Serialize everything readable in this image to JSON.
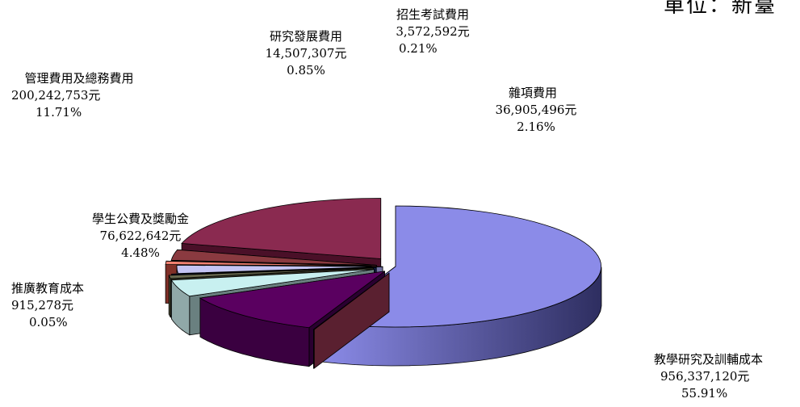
{
  "unit_title": "單位：新臺",
  "chart_data": {
    "type": "pie",
    "title": "",
    "slices": [
      {
        "name": "教學研究及訓輔成本",
        "amount": "956,337,120元",
        "percent": "55.91%",
        "value": 55.91,
        "color": "#8b8be8",
        "side": "#3a3a78",
        "side_light": "#6060b0"
      },
      {
        "name": "推廣教育成本",
        "amount": "915,278元",
        "percent": "0.05%",
        "value": 0.05,
        "color": "#c06070",
        "side": "#5a2030",
        "side_light": "#7a3040"
      },
      {
        "name": "管理費用及總務費用",
        "amount": "200,242,753元",
        "percent": "11.71%",
        "value": 11.71,
        "color": "#5a0060",
        "side": "#2a0030",
        "side_light": "#3a0040"
      },
      {
        "name": "學生公費及獎勵金",
        "amount": "76,622,642元",
        "percent": "4.48%",
        "value": 4.48,
        "color": "#c8f0f0",
        "side": "#6a8080",
        "side_light": "#90a8a8"
      },
      {
        "name": "研究發展費用",
        "amount": "14,507,307元",
        "percent": "0.85%",
        "value": 0.85,
        "color": "#6a6a50",
        "side": "#3a3a28",
        "side_light": "#50503a"
      },
      {
        "name": "招生考試費用",
        "amount": "3,572,592元",
        "percent": "0.21%",
        "value": 0.21,
        "color": "#2a3a80",
        "side": "#101a40",
        "side_light": "#1a2860"
      },
      {
        "name": "雜項費用",
        "amount": "36,905,496元",
        "percent": "2.16%",
        "value": 2.16,
        "color": "#c4c4f4",
        "side": "#7070a0",
        "side_light": "#9090c0"
      },
      {
        "name": "",
        "amount": "",
        "percent": "",
        "value": 0.9,
        "color": "#f08070",
        "side": "#803028",
        "side_light": "#a04038"
      },
      {
        "name": "",
        "amount": "",
        "percent": "",
        "value": 2.8,
        "color": "#8a3a40",
        "side": "#4a1a20",
        "side_light": "#602428"
      },
      {
        "name": "",
        "amount": "",
        "percent": "",
        "value": 20.9,
        "color": "#8a2a50",
        "side": "#4a1028",
        "side_light": "#6a1a38"
      }
    ]
  },
  "labels": [
    {
      "slice": 0,
      "align": "l"
    },
    {
      "slice": 1,
      "align": "c"
    },
    {
      "slice": 2,
      "align": "c"
    },
    {
      "slice": 3,
      "align": "c"
    },
    {
      "slice": 4,
      "align": "c"
    },
    {
      "slice": 5,
      "align": "c"
    },
    {
      "slice": 6,
      "align": "c"
    }
  ]
}
